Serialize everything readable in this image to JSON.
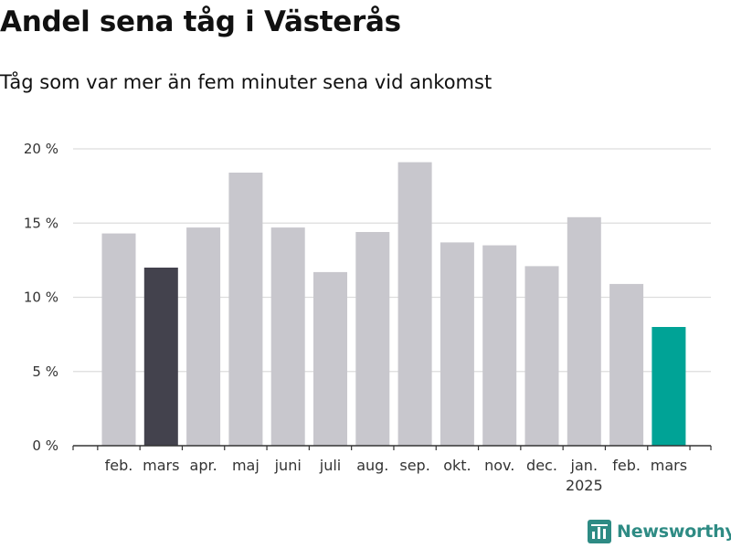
{
  "title": "Andel sena tåg i Västerås",
  "subtitle": "Tåg som var mer än fem minuter sena vid ankomst",
  "brand": "Newsworthy",
  "chart_data": {
    "type": "bar",
    "title": "Andel sena tåg i Västerås",
    "subtitle": "Tåg som var mer än fem minuter sena vid ankomst",
    "categories": [
      "feb.",
      "mars",
      "apr.",
      "maj",
      "juni",
      "juli",
      "aug.",
      "sep.",
      "okt.",
      "nov.",
      "dec.",
      "jan.",
      "feb.",
      "mars"
    ],
    "year_labels": [
      "",
      "",
      "",
      "",
      "",
      "",
      "",
      "",
      "",
      "",
      "",
      "2025",
      "",
      ""
    ],
    "values": [
      14.3,
      12.0,
      14.7,
      18.4,
      14.7,
      11.7,
      14.4,
      19.1,
      13.7,
      13.5,
      12.1,
      15.4,
      10.9,
      8.0
    ],
    "bar_colors": [
      "#c8c7cd",
      "#43424d",
      "#c8c7cd",
      "#c8c7cd",
      "#c8c7cd",
      "#c8c7cd",
      "#c8c7cd",
      "#c8c7cd",
      "#c8c7cd",
      "#c8c7cd",
      "#c8c7cd",
      "#c8c7cd",
      "#c8c7cd",
      "#00a396"
    ],
    "y_ticks": [
      0,
      5,
      10,
      15,
      20
    ],
    "y_tick_labels": [
      "0 %",
      "5 %",
      "10 %",
      "15 %",
      "20 %"
    ],
    "ylim": [
      0,
      20
    ],
    "xlabel": "",
    "ylabel": "",
    "grid": true
  }
}
